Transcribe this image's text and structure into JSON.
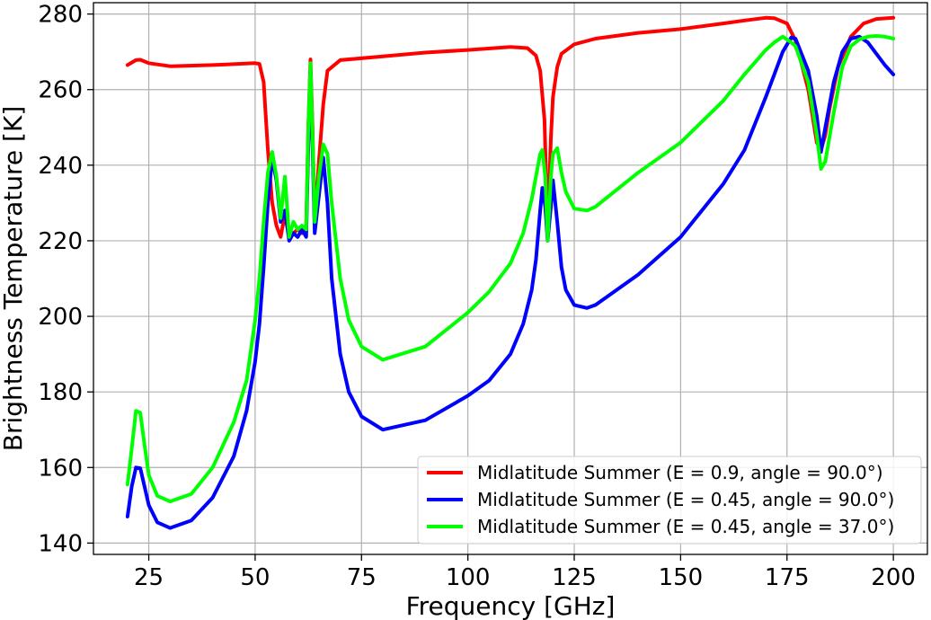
{
  "chart_data": {
    "type": "line",
    "title": "",
    "xlabel": "Frequency [GHz]",
    "ylabel": "Brightness Temperature [K]",
    "xlim": [
      12,
      208
    ],
    "ylim": [
      137,
      283
    ],
    "xticks": [
      25,
      50,
      75,
      100,
      125,
      150,
      175,
      200
    ],
    "yticks": [
      140,
      160,
      180,
      200,
      220,
      240,
      260,
      280
    ],
    "grid": true,
    "legend_position": "lower-right",
    "series": [
      {
        "name": "Midlatitude Summer (E = 0.9, angle = 90.0°)",
        "color": "#ff0000",
        "x": [
          20,
          22,
          23,
          25,
          30,
          40,
          50,
          51,
          52,
          53,
          54,
          55,
          56,
          57,
          58,
          59,
          60,
          61,
          62,
          62.5,
          63,
          63.5,
          64,
          65,
          66,
          67,
          70,
          80,
          90,
          100,
          110,
          114,
          116,
          117,
          118,
          118.75,
          119.5,
          120,
          121,
          122,
          125,
          130,
          140,
          150,
          160,
          165,
          170,
          172,
          175,
          177,
          180,
          181,
          182,
          183,
          184,
          185,
          187,
          190,
          193,
          196,
          200
        ],
        "y": [
          266.5,
          267.8,
          267.9,
          267,
          266.2,
          266.5,
          267,
          266.8,
          262,
          244,
          230,
          224,
          221,
          227,
          221,
          222,
          223,
          222,
          224,
          250,
          268,
          250,
          225,
          241,
          256,
          265,
          267.8,
          268.8,
          269.8,
          270.5,
          271.3,
          271,
          269,
          265,
          252,
          222,
          247,
          258,
          266,
          269.5,
          272,
          273.5,
          275,
          276,
          277.5,
          278.3,
          279,
          278.9,
          277.5,
          273,
          260,
          253,
          246,
          244,
          248,
          255,
          266,
          274,
          277.5,
          278.7,
          279
        ]
      },
      {
        "name": "Midlatitude Summer (E = 0.45, angle = 90.0°)",
        "color": "#0000ff",
        "x": [
          20,
          21,
          22,
          23,
          24,
          25,
          27,
          30,
          35,
          40,
          45,
          48,
          50,
          51,
          52,
          53,
          54,
          55,
          56,
          57,
          58,
          59,
          60,
          61,
          62,
          62.5,
          63,
          63.5,
          64,
          65,
          66,
          67,
          68,
          70,
          72,
          75,
          80,
          90,
          100,
          105,
          110,
          113,
          115,
          116,
          117,
          117.5,
          118.2,
          118.75,
          119.5,
          120,
          121,
          122,
          123,
          125,
          128,
          130,
          140,
          150,
          160,
          165,
          170,
          172,
          174,
          176,
          177,
          180,
          182,
          183,
          184,
          186,
          188,
          190,
          192,
          194,
          196,
          198,
          200
        ],
        "y": [
          147,
          155,
          160,
          159.8,
          155,
          150,
          145.5,
          144,
          146,
          152,
          163,
          175,
          188,
          198,
          213,
          230,
          242,
          236,
          225,
          228,
          220,
          222,
          221,
          223,
          221,
          245,
          265,
          245,
          222,
          232,
          242,
          230,
          210,
          190,
          180,
          173.5,
          170,
          172.5,
          179,
          183,
          190,
          198,
          207,
          215,
          228,
          234,
          229,
          220,
          229,
          236,
          225,
          213,
          207,
          203,
          202.2,
          203,
          211,
          221,
          235,
          244,
          258,
          264,
          270,
          273.8,
          273.5,
          265,
          253,
          243.5,
          250,
          262,
          270,
          273.5,
          274,
          272.5,
          269.5,
          266.5,
          264
        ]
      },
      {
        "name": "Midlatitude Summer (E = 0.45, angle = 37.0°)",
        "color": "#00ff00",
        "x": [
          20,
          21,
          22,
          23,
          24,
          25,
          27,
          30,
          35,
          40,
          45,
          48,
          50,
          51,
          52,
          53,
          54,
          55,
          56,
          57,
          58,
          59,
          60,
          61,
          62,
          62.5,
          63,
          63.5,
          64,
          65,
          66,
          67,
          68,
          70,
          72,
          75,
          80,
          90,
          100,
          105,
          110,
          113,
          115,
          116,
          117,
          117.5,
          118.2,
          118.75,
          119.5,
          120,
          121,
          122,
          123,
          125,
          128,
          130,
          140,
          150,
          160,
          165,
          170,
          172,
          174,
          176,
          177,
          180,
          182,
          183,
          184,
          186,
          188,
          190,
          192,
          194,
          196,
          198,
          200
        ],
        "y": [
          155.5,
          165,
          175,
          174.5,
          166,
          158,
          152.5,
          151,
          153,
          160,
          172,
          183,
          199,
          210,
          225,
          238,
          243.5,
          237,
          226,
          237,
          221,
          225,
          223,
          224,
          223,
          250,
          267,
          248,
          225,
          237,
          245.5,
          243,
          230,
          210,
          199,
          192,
          188.5,
          192,
          201,
          206.5,
          214,
          222,
          231,
          237,
          243,
          244,
          237,
          220,
          237,
          243,
          244.5,
          238,
          233,
          228.5,
          228,
          229,
          238,
          246,
          257,
          264,
          270.5,
          272.5,
          274,
          272.5,
          271.5,
          262,
          248,
          239,
          241,
          254,
          266,
          271.5,
          273.3,
          274,
          274.2,
          274,
          273.5
        ]
      }
    ]
  }
}
